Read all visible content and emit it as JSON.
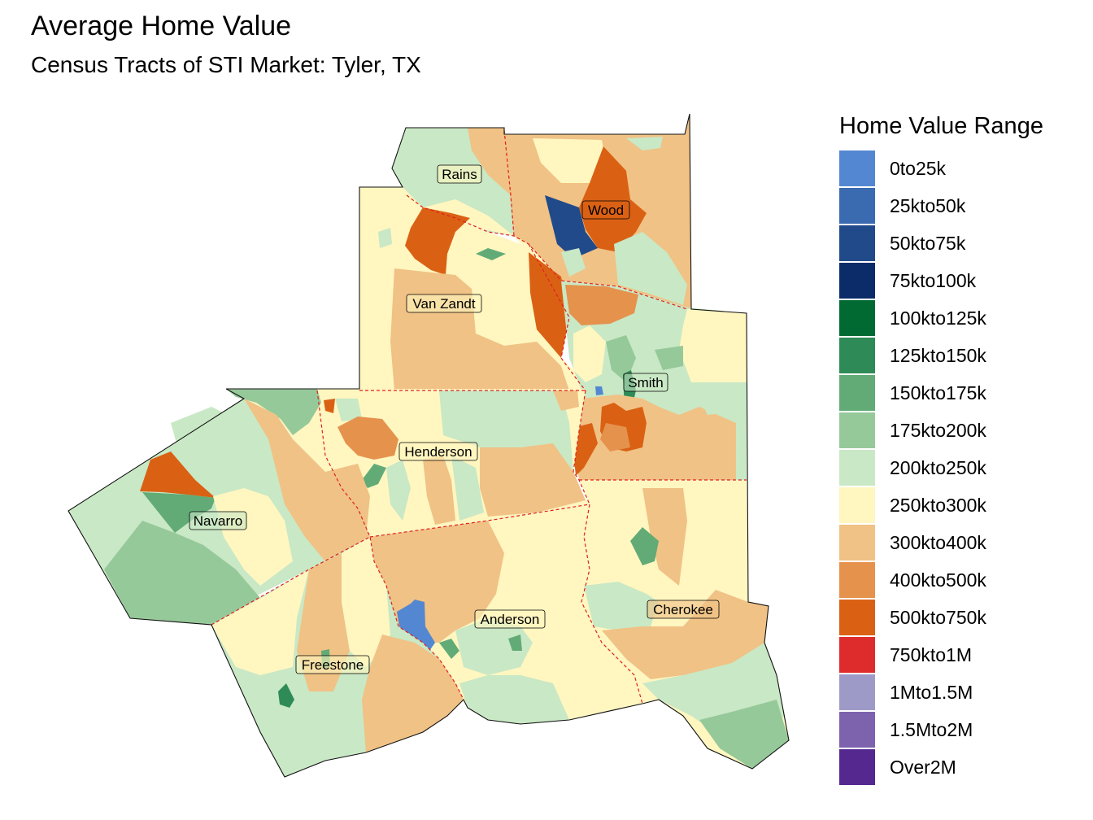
{
  "title": "Average Home Value",
  "subtitle": "Census Tracts of STI Market: Tyler, TX",
  "legend": {
    "title": "Home Value Range",
    "items": [
      {
        "label": "0to25k",
        "color": "#5387d1"
      },
      {
        "label": "25kto50k",
        "color": "#3a6ab0"
      },
      {
        "label": "50kto75k",
        "color": "#214a8a"
      },
      {
        "label": "75kto100k",
        "color": "#0b2c68"
      },
      {
        "label": "100kto125k",
        "color": "#006a32"
      },
      {
        "label": "125kto150k",
        "color": "#2e8b57"
      },
      {
        "label": "150kto175k",
        "color": "#62ab77"
      },
      {
        "label": "175kto200k",
        "color": "#96c99a"
      },
      {
        "label": "200kto250k",
        "color": "#c9e8c5"
      },
      {
        "label": "250kto300k",
        "color": "#fff6c0"
      },
      {
        "label": "300kto400k",
        "color": "#f0c285"
      },
      {
        "label": "400kto500k",
        "color": "#e5924d"
      },
      {
        "label": "500kto750k",
        "color": "#da6114"
      },
      {
        "label": "750kto1M",
        "color": "#de2c2c"
      },
      {
        "label": "1Mto1.5M",
        "color": "#9e9ac8"
      },
      {
        "label": "1.5Mto2M",
        "color": "#7d62ad"
      },
      {
        "label": "Over2M",
        "color": "#55288f"
      }
    ]
  },
  "counties": {
    "rains": "Rains",
    "wood": "Wood",
    "van_zandt": "Van Zandt",
    "smith": "Smith",
    "henderson": "Henderson",
    "navarro": "Navarro",
    "anderson": "Anderson",
    "cherokee": "Cherokee",
    "freestone": "Freestone"
  }
}
